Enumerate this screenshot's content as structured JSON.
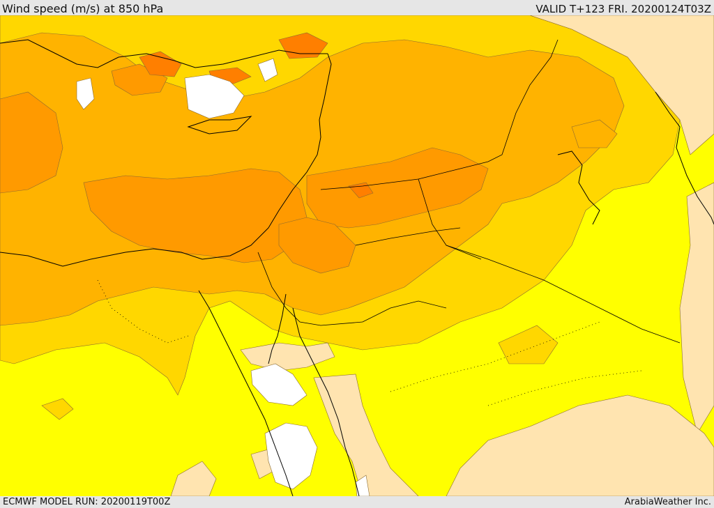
{
  "header": {
    "title": "Wind speed (m/s) at 850 hPa",
    "valid": "VALID T+123 FRI. 20200124T03Z"
  },
  "footer": {
    "model_run": "ECMWF MODEL RUN: 20200119T00Z",
    "credit": "ArabiaWeather Inc."
  },
  "map": {
    "colors": {
      "calm": "#ffffff",
      "light": "#ffe4b0",
      "moderate": "#ffff00",
      "fresh": "#ffd700",
      "strong": "#ffb300",
      "very_strong": "#ff9a00",
      "gale": "#ff7f00",
      "coast": "#000000",
      "contour": "#8a6a30"
    }
  }
}
